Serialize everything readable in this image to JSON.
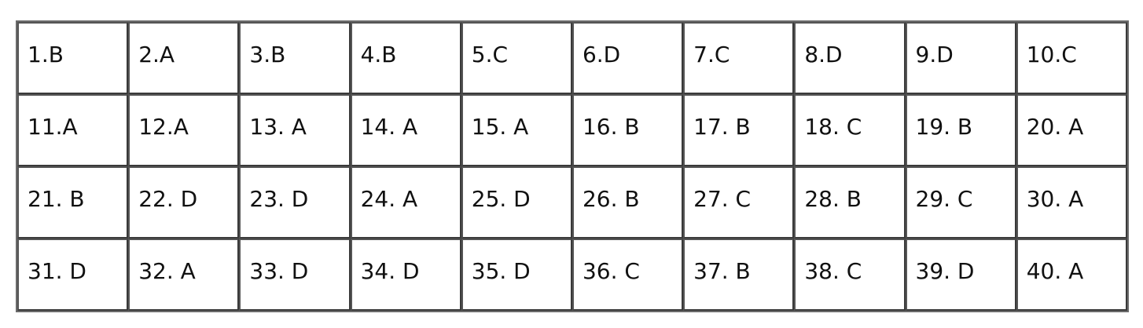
{
  "answers": [
    [
      "1.B",
      "2.A",
      "3.B",
      "4.B",
      "5.C",
      "6.D",
      "7.C",
      "8.D",
      "9.D",
      "10.C"
    ],
    [
      "11.A",
      "12.A",
      "13. A",
      "14. A",
      "15. A",
      "16. B",
      "17. B",
      "18. C",
      "19. B",
      "20. A"
    ],
    [
      "21. B",
      "22. D",
      "23. D",
      "24. A",
      "25. D",
      "26. B",
      "27. C",
      "28. B",
      "29. C",
      "30. A"
    ],
    [
      "31. D",
      "32. A",
      "33. D",
      "34. D",
      "35. D",
      "36. C",
      "37. B",
      "38. C",
      "39. D",
      "40. A"
    ]
  ]
}
